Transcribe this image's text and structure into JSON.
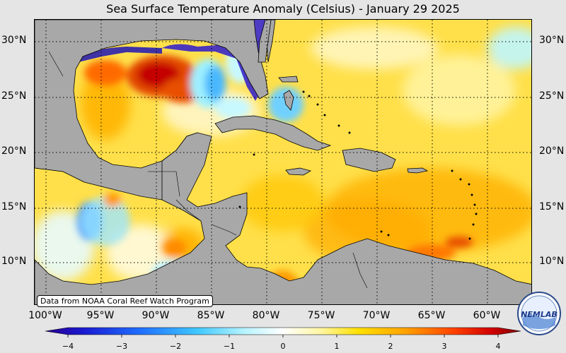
{
  "title": "Sea Surface Temperature Anomaly (Celsius) - January 29 2025",
  "credit": "Data from NOAA Coral Reef Watch Program",
  "logo_text": "NEMLAB",
  "colors": {
    "land": "#a8a8a8",
    "ocean_base": "#ffe25a",
    "background": "#e5e5e5"
  },
  "latitude_labels": [
    "30°N",
    "25°N",
    "20°N",
    "15°N",
    "10°N"
  ],
  "longitude_labels": [
    "100°W",
    "95°W",
    "90°W",
    "85°W",
    "80°W",
    "75°W",
    "70°W",
    "65°W",
    "60°W"
  ],
  "colorbar": {
    "ticks": [
      "−4",
      "−3",
      "−2",
      "−1",
      "0",
      "1",
      "2",
      "3",
      "4"
    ],
    "min": -4,
    "max": 4
  }
}
